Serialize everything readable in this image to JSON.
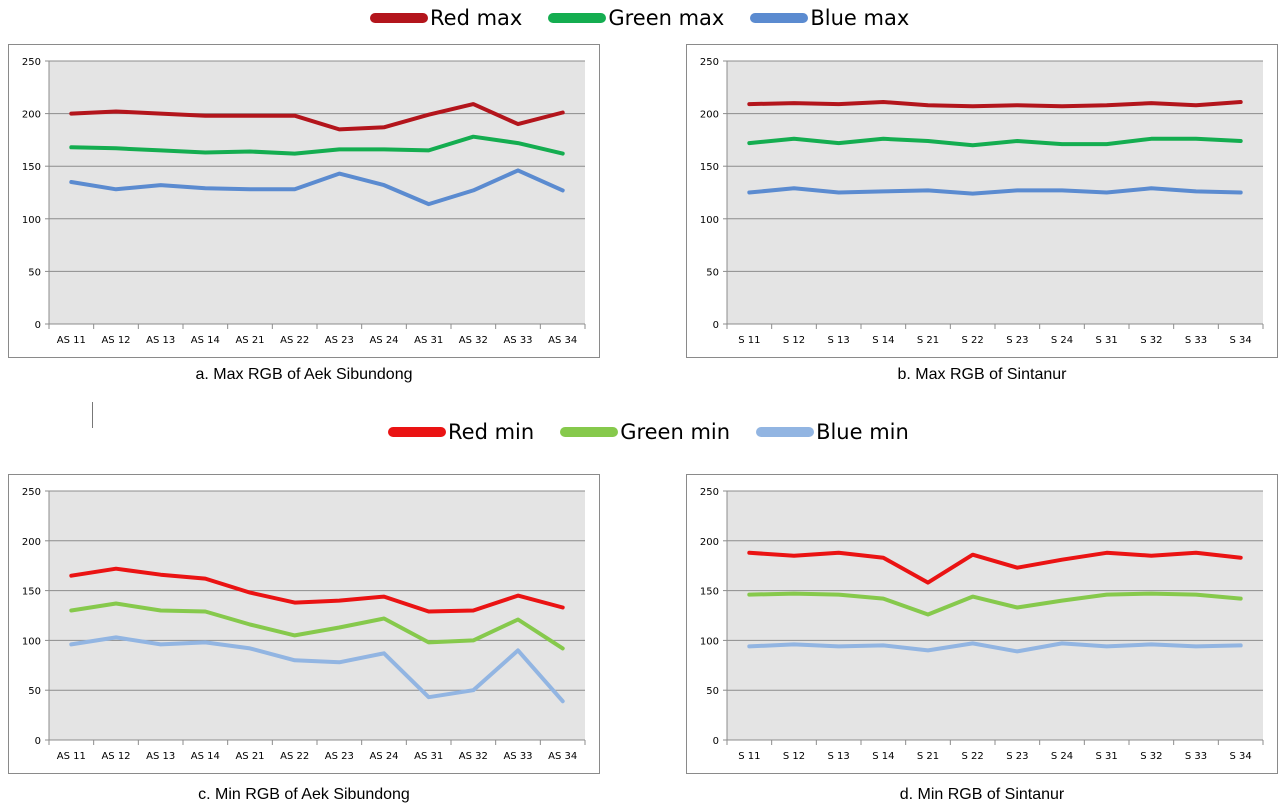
{
  "legend_top": {
    "items": [
      {
        "label": "Red max",
        "color": "#b3151c"
      },
      {
        "label": "Green max",
        "color": "#14ad50"
      },
      {
        "label": "Blue max",
        "color": "#5b8bd0"
      }
    ]
  },
  "legend_bottom": {
    "items": [
      {
        "label": "Red min",
        "color": "#ea1313"
      },
      {
        "label": "Green min",
        "color": "#86c94c"
      },
      {
        "label": "Blue min",
        "color": "#92b5e2"
      }
    ]
  },
  "captions": {
    "a": "a. Max RGB of Aek Sibundong",
    "b": "b. Max RGB of Sintanur",
    "c": "c. Min RGB of Aek Sibundong",
    "d": "d. Min RGB of Sintanur"
  },
  "chart_data": [
    {
      "type": "line",
      "categories": [
        "AS 11",
        "AS 12",
        "AS 13",
        "AS 14",
        "AS 21",
        "AS 22",
        "AS 23",
        "AS 24",
        "AS 31",
        "AS 32",
        "AS 33",
        "AS 34"
      ],
      "ylim": [
        0,
        250
      ],
      "yticks": [
        0,
        50,
        100,
        150,
        200,
        250
      ],
      "grid": true,
      "series": [
        {
          "name": "Red max",
          "color": "#b3151c",
          "values": [
            200,
            202,
            200,
            198,
            198,
            198,
            185,
            187,
            199,
            209,
            190,
            201
          ]
        },
        {
          "name": "Green max",
          "color": "#14ad50",
          "values": [
            168,
            167,
            165,
            163,
            164,
            162,
            166,
            166,
            165,
            178,
            172,
            162
          ]
        },
        {
          "name": "Blue max",
          "color": "#5b8bd0",
          "values": [
            135,
            128,
            132,
            129,
            128,
            128,
            143,
            132,
            114,
            127,
            146,
            127
          ]
        }
      ]
    },
    {
      "type": "line",
      "categories": [
        "S 11",
        "S 12",
        "S 13",
        "S 14",
        "S 21",
        "S 22",
        "S 23",
        "S 24",
        "S 31",
        "S 32",
        "S 33",
        "S 34"
      ],
      "ylim": [
        0,
        250
      ],
      "yticks": [
        0,
        50,
        100,
        150,
        200,
        250
      ],
      "grid": true,
      "series": [
        {
          "name": "Red max",
          "color": "#b3151c",
          "values": [
            209,
            210,
            209,
            211,
            208,
            207,
            208,
            207,
            208,
            210,
            208,
            211
          ]
        },
        {
          "name": "Green max",
          "color": "#14ad50",
          "values": [
            172,
            176,
            172,
            176,
            174,
            170,
            174,
            171,
            171,
            176,
            176,
            174
          ]
        },
        {
          "name": "Blue max",
          "color": "#5b8bd0",
          "values": [
            125,
            129,
            125,
            126,
            127,
            124,
            127,
            127,
            125,
            129,
            126,
            125
          ]
        }
      ]
    },
    {
      "type": "line",
      "categories": [
        "AS 11",
        "AS 12",
        "AS 13",
        "AS 14",
        "AS 21",
        "AS 22",
        "AS 23",
        "AS 24",
        "AS 31",
        "AS 32",
        "AS 33",
        "AS 34"
      ],
      "ylim": [
        0,
        250
      ],
      "yticks": [
        0,
        50,
        100,
        150,
        200,
        250
      ],
      "grid": true,
      "series": [
        {
          "name": "Red min",
          "color": "#ea1313",
          "values": [
            165,
            172,
            166,
            162,
            148,
            138,
            140,
            144,
            129,
            130,
            145,
            133
          ]
        },
        {
          "name": "Green min",
          "color": "#86c94c",
          "values": [
            130,
            137,
            130,
            129,
            116,
            105,
            113,
            122,
            98,
            100,
            121,
            92
          ]
        },
        {
          "name": "Blue min",
          "color": "#92b5e2",
          "values": [
            96,
            103,
            96,
            98,
            92,
            80,
            78,
            87,
            43,
            50,
            90,
            39
          ]
        }
      ]
    },
    {
      "type": "line",
      "categories": [
        "S 11",
        "S 12",
        "S 13",
        "S 14",
        "S 21",
        "S 22",
        "S 23",
        "S 24",
        "S 31",
        "S 32",
        "S 33",
        "S 34"
      ],
      "ylim": [
        0,
        250
      ],
      "yticks": [
        0,
        50,
        100,
        150,
        200,
        250
      ],
      "grid": true,
      "series": [
        {
          "name": "Red min",
          "color": "#ea1313",
          "values": [
            188,
            185,
            188,
            183,
            158,
            186,
            173,
            181,
            188,
            185,
            188,
            183
          ]
        },
        {
          "name": "Green min",
          "color": "#86c94c",
          "values": [
            146,
            147,
            146,
            142,
            126,
            144,
            133,
            140,
            146,
            147,
            146,
            142
          ]
        },
        {
          "name": "Blue min",
          "color": "#92b5e2",
          "values": [
            94,
            96,
            94,
            95,
            90,
            97,
            89,
            97,
            94,
            96,
            94,
            95
          ]
        }
      ]
    }
  ]
}
